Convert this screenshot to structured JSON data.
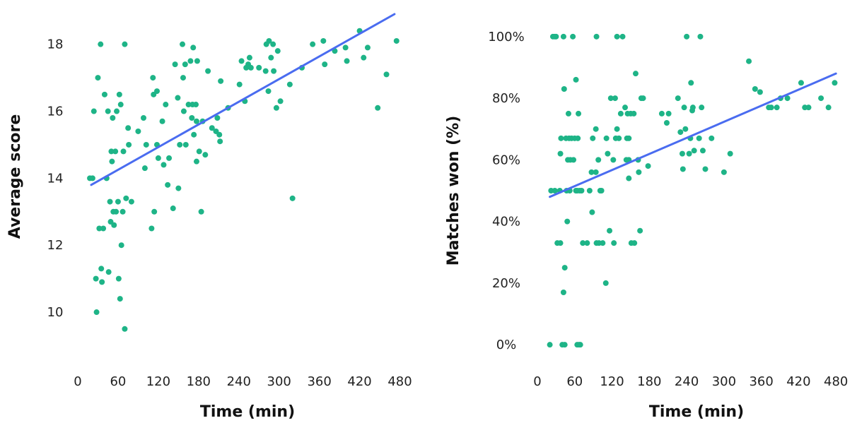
{
  "colors": {
    "points": "#1eb487",
    "trend": "#4a6cf0",
    "text": "#222222"
  },
  "chart_data": [
    {
      "type": "scatter",
      "xlabel": "Time (min)",
      "ylabel": "Average score",
      "xlim": [
        0,
        490
      ],
      "ylim": [
        9.2,
        18.9
      ],
      "xticks": [
        0,
        60,
        120,
        180,
        240,
        300,
        360,
        420,
        480
      ],
      "yticks": [
        10,
        12,
        14,
        16,
        18
      ],
      "xtick_labels": [
        "0",
        "60",
        "120",
        "180",
        "240",
        "300",
        "360",
        "420",
        "480"
      ],
      "ytick_labels": [
        "10",
        "12",
        "14",
        "16",
        "18"
      ],
      "grid": false,
      "trendline": {
        "x": [
          20,
          472
        ],
        "y": [
          13.8,
          18.9
        ]
      },
      "points": [
        [
          18,
          14.0
        ],
        [
          22,
          14.0
        ],
        [
          24,
          16.0
        ],
        [
          27,
          11.0
        ],
        [
          28,
          10.0
        ],
        [
          30,
          17.0
        ],
        [
          32,
          12.5
        ],
        [
          34,
          18.0
        ],
        [
          35,
          11.3
        ],
        [
          36,
          10.9
        ],
        [
          38,
          12.5
        ],
        [
          40,
          16.5
        ],
        [
          43,
          14.0
        ],
        [
          45,
          16.0
        ],
        [
          46,
          11.2
        ],
        [
          48,
          13.3
        ],
        [
          49,
          12.7
        ],
        [
          50,
          14.8
        ],
        [
          51,
          14.5
        ],
        [
          52,
          15.8
        ],
        [
          53,
          13.0
        ],
        [
          54,
          12.6
        ],
        [
          56,
          14.8
        ],
        [
          57,
          13.0
        ],
        [
          58,
          16.0
        ],
        [
          60,
          13.3
        ],
        [
          61,
          11.0
        ],
        [
          62,
          16.5
        ],
        [
          63,
          10.4
        ],
        [
          64,
          16.2
        ],
        [
          65,
          12.0
        ],
        [
          67,
          13.0
        ],
        [
          68,
          14.8
        ],
        [
          70,
          9.5
        ],
        [
          70,
          18.0
        ],
        [
          72,
          13.4
        ],
        [
          75,
          15.5
        ],
        [
          76,
          15.0
        ],
        [
          80,
          13.3
        ],
        [
          90,
          15.4
        ],
        [
          98,
          15.8
        ],
        [
          100,
          14.3
        ],
        [
          102,
          15.0
        ],
        [
          110,
          12.5
        ],
        [
          112,
          17.0
        ],
        [
          113,
          16.5
        ],
        [
          114,
          13.0
        ],
        [
          118,
          16.6
        ],
        [
          118,
          15.0
        ],
        [
          120,
          14.6
        ],
        [
          126,
          15.7
        ],
        [
          128,
          14.4
        ],
        [
          131,
          16.2
        ],
        [
          134,
          13.8
        ],
        [
          136,
          14.6
        ],
        [
          142,
          13.1
        ],
        [
          145,
          17.4
        ],
        [
          149,
          16.4
        ],
        [
          150,
          13.7
        ],
        [
          152,
          15.0
        ],
        [
          156,
          18.0
        ],
        [
          157,
          17.0
        ],
        [
          158,
          16.0
        ],
        [
          160,
          17.4
        ],
        [
          161,
          15.0
        ],
        [
          165,
          16.2
        ],
        [
          168,
          17.5
        ],
        [
          170,
          15.8
        ],
        [
          171,
          16.2
        ],
        [
          172,
          17.9
        ],
        [
          173,
          15.3
        ],
        [
          176,
          16.2
        ],
        [
          177,
          14.5
        ],
        [
          177,
          15.7
        ],
        [
          178,
          17.5
        ],
        [
          181,
          14.8
        ],
        [
          184,
          13.0
        ],
        [
          186,
          15.7
        ],
        [
          190,
          14.7
        ],
        [
          194,
          17.2
        ],
        [
          200,
          15.5
        ],
        [
          206,
          15.4
        ],
        [
          208,
          15.8
        ],
        [
          211,
          15.3
        ],
        [
          212,
          15.1
        ],
        [
          213,
          16.9
        ],
        [
          224,
          16.1
        ],
        [
          241,
          16.8
        ],
        [
          244,
          17.5
        ],
        [
          249,
          16.3
        ],
        [
          251,
          17.3
        ],
        [
          254,
          17.4
        ],
        [
          256,
          17.6
        ],
        [
          258,
          17.3
        ],
        [
          270,
          17.3
        ],
        [
          280,
          17.2
        ],
        [
          281,
          18.0
        ],
        [
          284,
          16.6
        ],
        [
          285,
          18.1
        ],
        [
          288,
          17.6
        ],
        [
          291,
          18.0
        ],
        [
          292,
          17.2
        ],
        [
          296,
          16.1
        ],
        [
          298,
          17.8
        ],
        [
          302,
          16.3
        ],
        [
          316,
          16.8
        ],
        [
          320,
          13.4
        ],
        [
          334,
          17.3
        ],
        [
          350,
          18.0
        ],
        [
          366,
          18.1
        ],
        [
          368,
          17.4
        ],
        [
          383,
          17.8
        ],
        [
          399,
          17.9
        ],
        [
          401,
          17.5
        ],
        [
          420,
          18.4
        ],
        [
          426,
          17.6
        ],
        [
          432,
          17.9
        ],
        [
          447,
          16.1
        ],
        [
          460,
          17.1
        ],
        [
          475,
          18.1
        ]
      ]
    },
    {
      "type": "scatter",
      "xlabel": "Time (min)",
      "ylabel": "Matches won (%)",
      "xlim": [
        0,
        490
      ],
      "ylim": [
        -5,
        105
      ],
      "xticks": [
        0,
        60,
        120,
        180,
        240,
        300,
        360,
        420,
        480
      ],
      "yticks": [
        0,
        20,
        40,
        60,
        80,
        100
      ],
      "xtick_labels": [
        "0",
        "60",
        "120",
        "180",
        "240",
        "300",
        "360",
        "420",
        "480"
      ],
      "ytick_labels": [
        "0%",
        "20%",
        "40%",
        "60%",
        "80%",
        "100%"
      ],
      "grid": false,
      "trendline": {
        "x": [
          20,
          480
        ],
        "y": [
          48,
          88
        ]
      },
      "points": [
        [
          20,
          0
        ],
        [
          22,
          50
        ],
        [
          25,
          100
        ],
        [
          28,
          50
        ],
        [
          28,
          100
        ],
        [
          30,
          100
        ],
        [
          32,
          33
        ],
        [
          36,
          50
        ],
        [
          37,
          33
        ],
        [
          37,
          62
        ],
        [
          38,
          67
        ],
        [
          40,
          0
        ],
        [
          42,
          100
        ],
        [
          42,
          17
        ],
        [
          43,
          83
        ],
        [
          44,
          25
        ],
        [
          44,
          0
        ],
        [
          46,
          67
        ],
        [
          47,
          50
        ],
        [
          48,
          40
        ],
        [
          49,
          60
        ],
        [
          50,
          75
        ],
        [
          51,
          67
        ],
        [
          52,
          50
        ],
        [
          53,
          60
        ],
        [
          55,
          67
        ],
        [
          57,
          100
        ],
        [
          58,
          60
        ],
        [
          60,
          67
        ],
        [
          62,
          50
        ],
        [
          62,
          86
        ],
        [
          64,
          50
        ],
        [
          64,
          0
        ],
        [
          65,
          67
        ],
        [
          66,
          75
        ],
        [
          67,
          0
        ],
        [
          68,
          50
        ],
        [
          69,
          0
        ],
        [
          71,
          50
        ],
        [
          73,
          33
        ],
        [
          80,
          33
        ],
        [
          84,
          50
        ],
        [
          87,
          56
        ],
        [
          88,
          43
        ],
        [
          89,
          67
        ],
        [
          94,
          70
        ],
        [
          94,
          56
        ],
        [
          95,
          33
        ],
        [
          95,
          100
        ],
        [
          98,
          60
        ],
        [
          99,
          33
        ],
        [
          101,
          50
        ],
        [
          103,
          50
        ],
        [
          105,
          33
        ],
        [
          110,
          20
        ],
        [
          111,
          67
        ],
        [
          113,
          62
        ],
        [
          116,
          37
        ],
        [
          118,
          80
        ],
        [
          122,
          60
        ],
        [
          123,
          33
        ],
        [
          125,
          80
        ],
        [
          126,
          67
        ],
        [
          128,
          70
        ],
        [
          128,
          100
        ],
        [
          131,
          67
        ],
        [
          134,
          75
        ],
        [
          137,
          100
        ],
        [
          141,
          77
        ],
        [
          143,
          60
        ],
        [
          144,
          67
        ],
        [
          145,
          75
        ],
        [
          147,
          67
        ],
        [
          147,
          54
        ],
        [
          147,
          60
        ],
        [
          150,
          75
        ],
        [
          151,
          33
        ],
        [
          155,
          75
        ],
        [
          156,
          33
        ],
        [
          158,
          88
        ],
        [
          162,
          60
        ],
        [
          163,
          56
        ],
        [
          165,
          37
        ],
        [
          167,
          80
        ],
        [
          170,
          80
        ],
        [
          178,
          58
        ],
        [
          200,
          75
        ],
        [
          208,
          72
        ],
        [
          211,
          75
        ],
        [
          226,
          80
        ],
        [
          230,
          69
        ],
        [
          233,
          62
        ],
        [
          234,
          57
        ],
        [
          236,
          77
        ],
        [
          238,
          70
        ],
        [
          240,
          100
        ],
        [
          244,
          62
        ],
        [
          246,
          67
        ],
        [
          247,
          85
        ],
        [
          249,
          76
        ],
        [
          250,
          77
        ],
        [
          252,
          63
        ],
        [
          260,
          67
        ],
        [
          262,
          100
        ],
        [
          264,
          77
        ],
        [
          266,
          63
        ],
        [
          270,
          57
        ],
        [
          280,
          67
        ],
        [
          300,
          56
        ],
        [
          310,
          62
        ],
        [
          340,
          92
        ],
        [
          350,
          83
        ],
        [
          358,
          82
        ],
        [
          372,
          77
        ],
        [
          376,
          77
        ],
        [
          385,
          77
        ],
        [
          391,
          80
        ],
        [
          402,
          80
        ],
        [
          424,
          85
        ],
        [
          430,
          77
        ],
        [
          436,
          77
        ],
        [
          456,
          80
        ],
        [
          468,
          77
        ],
        [
          478,
          85
        ]
      ]
    }
  ]
}
